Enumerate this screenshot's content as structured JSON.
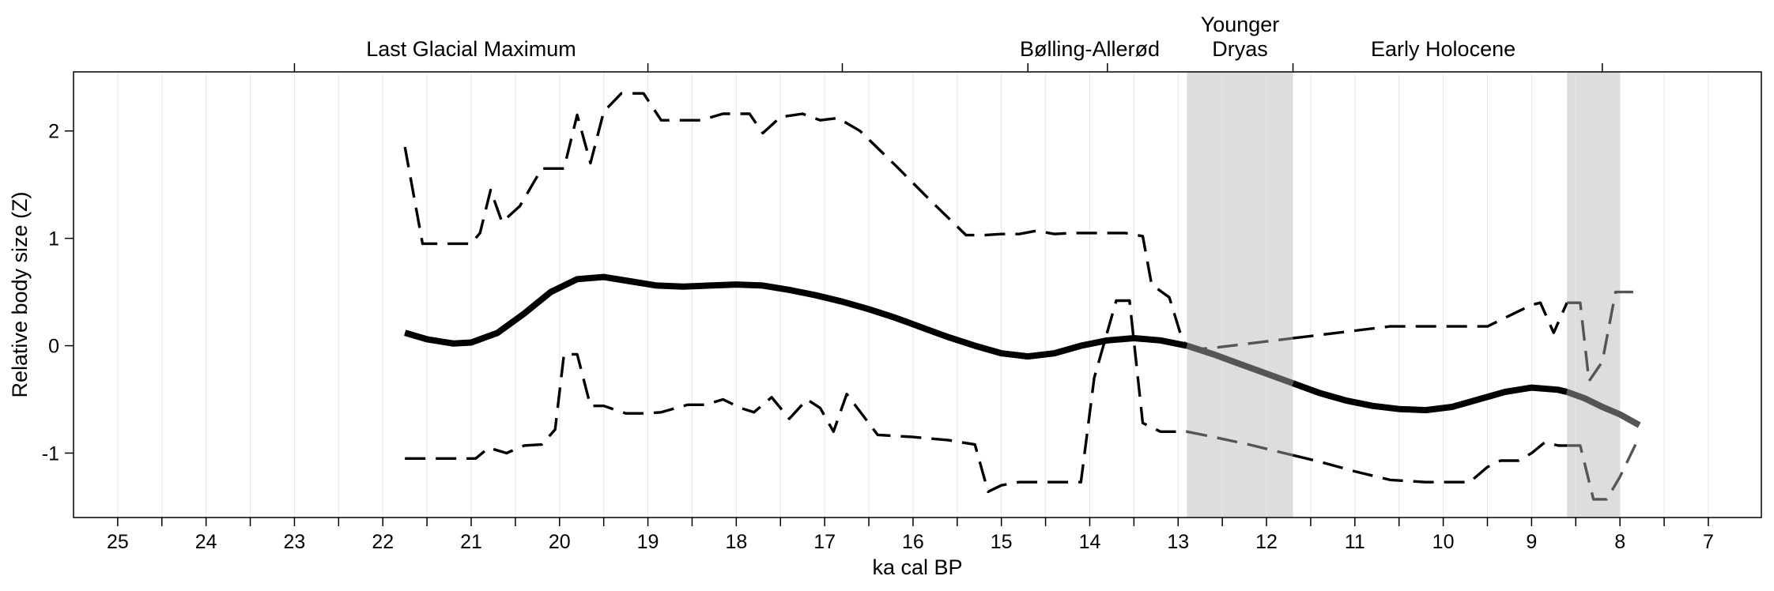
{
  "chart_data": {
    "type": "line",
    "title": "",
    "xlabel": "ka cal BP",
    "ylabel": "Relative body size (Z)",
    "x_reversed": true,
    "xlim": [
      25.5,
      6.4
    ],
    "ylim": [
      -1.6,
      2.55
    ],
    "grid": "vertical",
    "xticks": [
      25,
      24,
      23,
      22,
      21,
      20,
      19,
      18,
      17,
      16,
      15,
      14,
      13,
      12,
      11,
      10,
      9,
      8,
      7
    ],
    "xtick_labels": [
      "25",
      "24",
      "23",
      "22",
      "21",
      "20",
      "19",
      "18",
      "17",
      "16",
      "15",
      "14",
      "13",
      "12",
      "11",
      "10",
      "9",
      "8",
      "7"
    ],
    "xminor": [
      24.5,
      23.5,
      22.5,
      21.5,
      20.5,
      19.5,
      18.5,
      17.5,
      16.5,
      15.5,
      14.5,
      13.5,
      12.5,
      11.5,
      10.5,
      9.5,
      8.5,
      7.5
    ],
    "yticks": [
      2,
      1,
      0,
      -1
    ],
    "ytick_labels": [
      "2",
      "1",
      "0",
      "-1"
    ],
    "shaded_periods": [
      {
        "from": 12.9,
        "to": 11.7,
        "color": "#dddddd"
      },
      {
        "from": 8.6,
        "to": 8.0,
        "color": "#dddddd"
      }
    ],
    "periods": [
      {
        "label": "Last Glacial Maximum",
        "x": 21.0
      },
      {
        "label": "Bølling-Allerød",
        "x": 14.0
      },
      {
        "label": "Younger",
        "label2": "Dryas",
        "x": 12.3
      },
      {
        "label": "Early Holocene",
        "x": 10.0
      }
    ],
    "top_ticks": [
      23.0,
      19.0,
      16.8,
      14.7,
      13.8,
      11.7,
      8.2
    ],
    "series": [
      {
        "role": "mean",
        "style": "solid",
        "color": "#000000",
        "highlight_color": "#555555",
        "x": [
          21.75,
          21.5,
          21.2,
          21.0,
          20.7,
          20.4,
          20.1,
          19.8,
          19.5,
          19.2,
          18.9,
          18.6,
          18.3,
          18.0,
          17.7,
          17.4,
          17.1,
          16.8,
          16.5,
          16.2,
          15.9,
          15.6,
          15.3,
          15.0,
          14.7,
          14.4,
          14.1,
          13.8,
          13.5,
          13.2,
          12.9,
          12.6,
          12.3,
          12.0,
          11.7,
          11.4,
          11.1,
          10.8,
          10.5,
          10.2,
          9.9,
          9.6,
          9.3,
          9.0,
          8.7,
          8.6,
          8.4,
          8.2,
          8.0,
          7.78
        ],
        "y": [
          0.12,
          0.06,
          0.02,
          0.03,
          0.12,
          0.3,
          0.5,
          0.62,
          0.64,
          0.6,
          0.56,
          0.55,
          0.56,
          0.57,
          0.56,
          0.52,
          0.47,
          0.41,
          0.34,
          0.26,
          0.17,
          0.08,
          0.0,
          -0.07,
          -0.1,
          -0.07,
          0.0,
          0.05,
          0.07,
          0.05,
          0.0,
          -0.08,
          -0.17,
          -0.26,
          -0.35,
          -0.44,
          -0.51,
          -0.56,
          -0.59,
          -0.6,
          -0.57,
          -0.5,
          -0.43,
          -0.39,
          -0.41,
          -0.43,
          -0.49,
          -0.57,
          -0.64,
          -0.74
        ],
        "highlight_ranges": [
          [
            12.9,
            11.7
          ],
          [
            8.6,
            7.78
          ]
        ]
      },
      {
        "role": "upper",
        "style": "dashed",
        "color": "#000000",
        "highlight_color": "#555555",
        "x": [
          21.75,
          21.55,
          21.3,
          21.0,
          20.9,
          20.78,
          20.65,
          20.45,
          20.2,
          19.95,
          19.8,
          19.65,
          19.5,
          19.3,
          19.05,
          18.85,
          18.6,
          18.4,
          18.15,
          17.85,
          17.7,
          17.5,
          17.25,
          17.05,
          16.85,
          16.6,
          16.2,
          15.8,
          15.4,
          15.2,
          15.0,
          14.8,
          14.6,
          14.4,
          14.2,
          14.0,
          13.6,
          13.4,
          13.3,
          13.1,
          12.95,
          12.9,
          12.75,
          12.6,
          12.2,
          11.8,
          11.4,
          11.0,
          10.6,
          10.2,
          9.8,
          9.5,
          9.2,
          9.0,
          8.9,
          8.75,
          8.6,
          8.45,
          8.35,
          8.2,
          8.05,
          7.85
        ],
        "y": [
          1.85,
          0.95,
          0.95,
          0.95,
          1.05,
          1.45,
          1.15,
          1.3,
          1.65,
          1.65,
          2.15,
          1.7,
          2.18,
          2.35,
          2.35,
          2.1,
          2.1,
          2.1,
          2.16,
          2.16,
          1.98,
          2.13,
          2.16,
          2.1,
          2.12,
          2.0,
          1.68,
          1.35,
          1.03,
          1.03,
          1.04,
          1.04,
          1.07,
          1.04,
          1.05,
          1.05,
          1.05,
          1.02,
          0.57,
          0.45,
          0.05,
          0.0,
          -0.03,
          -0.02,
          0.02,
          0.06,
          0.1,
          0.14,
          0.18,
          0.18,
          0.18,
          0.18,
          0.3,
          0.38,
          0.4,
          0.12,
          0.4,
          0.4,
          -0.33,
          -0.15,
          0.5,
          0.5
        ],
        "highlight_ranges": [
          [
            12.9,
            11.7
          ],
          [
            8.6,
            7.85
          ]
        ]
      },
      {
        "role": "lower",
        "style": "dashed",
        "color": "#000000",
        "highlight_color": "#555555",
        "x": [
          21.75,
          21.5,
          21.2,
          20.95,
          20.8,
          20.6,
          20.4,
          20.2,
          20.05,
          19.95,
          19.8,
          19.65,
          19.5,
          19.25,
          19.05,
          18.85,
          18.55,
          18.35,
          18.15,
          17.95,
          17.8,
          17.6,
          17.4,
          17.2,
          17.05,
          16.9,
          16.75,
          16.4,
          16.0,
          15.6,
          15.3,
          15.15,
          15.0,
          14.8,
          14.4,
          14.1,
          13.95,
          13.7,
          13.55,
          13.4,
          13.2,
          12.9,
          12.6,
          12.2,
          11.8,
          11.4,
          11.0,
          10.6,
          10.2,
          10.0,
          9.7,
          9.5,
          9.35,
          9.15,
          9.0,
          8.85,
          8.7,
          8.6,
          8.45,
          8.3,
          8.15,
          8.0,
          7.8
        ],
        "y": [
          -1.05,
          -1.05,
          -1.05,
          -1.05,
          -0.95,
          -1.0,
          -0.93,
          -0.92,
          -0.78,
          -0.08,
          -0.08,
          -0.56,
          -0.56,
          -0.63,
          -0.63,
          -0.62,
          -0.55,
          -0.55,
          -0.5,
          -0.58,
          -0.62,
          -0.48,
          -0.68,
          -0.5,
          -0.58,
          -0.8,
          -0.45,
          -0.83,
          -0.85,
          -0.88,
          -0.92,
          -1.36,
          -1.3,
          -1.27,
          -1.27,
          -1.27,
          -0.3,
          0.42,
          0.42,
          -0.72,
          -0.8,
          -0.8,
          -0.85,
          -0.92,
          -1.0,
          -1.08,
          -1.17,
          -1.25,
          -1.27,
          -1.27,
          -1.27,
          -1.13,
          -1.07,
          -1.07,
          -1.0,
          -0.9,
          -0.93,
          -0.93,
          -0.93,
          -1.43,
          -1.43,
          -1.22,
          -0.88
        ],
        "highlight_ranges": [
          [
            12.9,
            11.7
          ],
          [
            8.6,
            7.8
          ]
        ]
      }
    ]
  }
}
